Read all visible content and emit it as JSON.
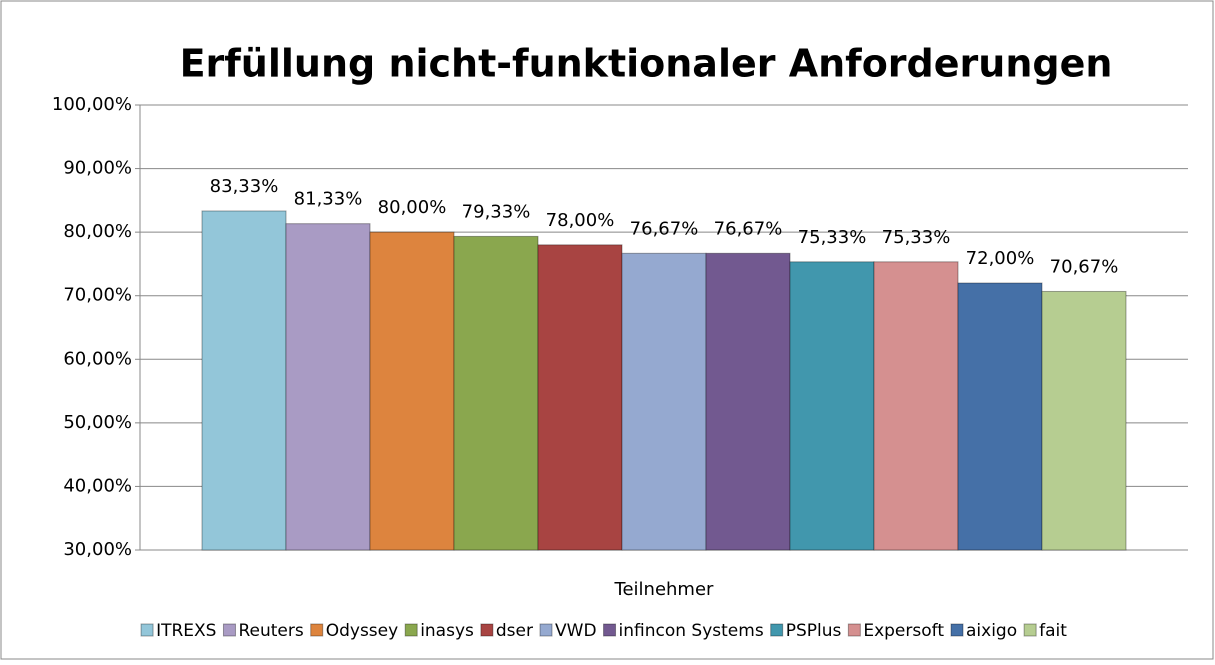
{
  "chart_data": {
    "type": "bar",
    "title": "Erfüllung nicht-funktionaler Anforderungen",
    "x_label": "Teilnehmer",
    "ylim": [
      30,
      100
    ],
    "yticks": [
      {
        "value": 30,
        "label": "30,00%"
      },
      {
        "value": 40,
        "label": "40,00%"
      },
      {
        "value": 50,
        "label": "50,00%"
      },
      {
        "value": 60,
        "label": "60,00%"
      },
      {
        "value": 70,
        "label": "70,00%"
      },
      {
        "value": 80,
        "label": "80,00%"
      },
      {
        "value": 90,
        "label": "90,00%"
      },
      {
        "value": 100,
        "label": "100,00%"
      }
    ],
    "grid": true,
    "legend": "bottom",
    "series": [
      {
        "name": "ITREXS",
        "color": "#93c6d9",
        "values": [
          83.33
        ],
        "value_labels": [
          "83,33%"
        ]
      },
      {
        "name": "Reuters",
        "color": "#a99bc4",
        "values": [
          81.33
        ],
        "value_labels": [
          "81,33%"
        ]
      },
      {
        "name": "Odyssey",
        "color": "#dd843e",
        "values": [
          80.0
        ],
        "value_labels": [
          "80,00%"
        ]
      },
      {
        "name": "inasys",
        "color": "#8aa74e",
        "values": [
          79.33
        ],
        "value_labels": [
          "79,33%"
        ]
      },
      {
        "name": "dser",
        "color": "#a84442",
        "values": [
          78.0
        ],
        "value_labels": [
          "78,00%"
        ]
      },
      {
        "name": "VWD",
        "color": "#95a9d0",
        "values": [
          76.67
        ],
        "value_labels": [
          "76,67%"
        ]
      },
      {
        "name": "infincon Systems",
        "color": "#725990",
        "values": [
          76.67
        ],
        "value_labels": [
          "76,67%"
        ]
      },
      {
        "name": "PSPlus",
        "color": "#4197ad",
        "values": [
          75.33
        ],
        "value_labels": [
          "75,33%"
        ]
      },
      {
        "name": "Expersoft",
        "color": "#d59090",
        "values": [
          75.33
        ],
        "value_labels": [
          "75,33%"
        ]
      },
      {
        "name": "aixigo",
        "color": "#4570a7",
        "values": [
          72.0
        ],
        "value_labels": [
          "72,00%"
        ]
      },
      {
        "name": "fait",
        "color": "#b6cd91",
        "values": [
          70.67
        ],
        "value_labels": [
          "70,67%"
        ]
      }
    ]
  }
}
